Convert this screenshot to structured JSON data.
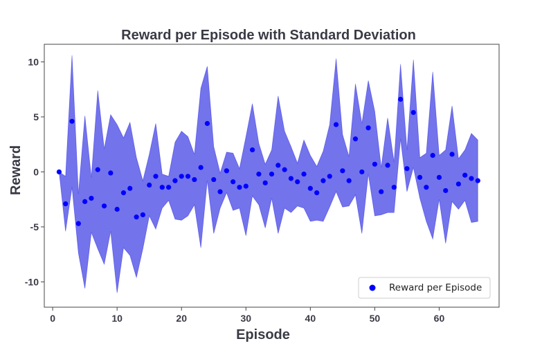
{
  "chart_data": {
    "type": "scatter",
    "title": "Reward per Episode with Standard Deviation",
    "xlabel": "Episode",
    "ylabel": "Reward",
    "xlim": [
      -1.3,
      69.3
    ],
    "ylim": [
      -12.3,
      11.6
    ],
    "xticks": [
      0,
      10,
      20,
      30,
      40,
      50,
      60
    ],
    "xtick_labels": [
      "0",
      "10",
      "20",
      "30",
      "40",
      "50",
      "60"
    ],
    "yticks": [
      10,
      5,
      0,
      -5,
      -10
    ],
    "ytick_labels": [
      "10",
      "5",
      "0",
      "-5",
      "-10"
    ],
    "grid": false,
    "legend": {
      "entries": [
        "Reward per Episode"
      ],
      "position": "lower-right"
    },
    "colors": {
      "points": "#0000ff",
      "band": "#0000dd",
      "band_opacity": 0.55,
      "text": "#3a3a46"
    },
    "x": [
      1,
      2,
      3,
      4,
      5,
      6,
      7,
      8,
      9,
      10,
      11,
      12,
      13,
      14,
      15,
      16,
      17,
      18,
      19,
      20,
      21,
      22,
      23,
      24,
      25,
      26,
      27,
      28,
      29,
      30,
      31,
      32,
      33,
      34,
      35,
      36,
      37,
      38,
      39,
      40,
      41,
      42,
      43,
      44,
      45,
      46,
      47,
      48,
      49,
      50,
      51,
      52,
      53,
      54,
      55,
      56,
      57,
      58,
      59,
      60,
      61,
      62,
      63,
      64,
      65,
      66
    ],
    "series": [
      {
        "name": "Reward per Episode",
        "values": [
          0.0,
          -2.9,
          4.6,
          -4.7,
          -2.7,
          -2.4,
          0.2,
          -3.1,
          -0.1,
          -3.4,
          -1.9,
          -1.5,
          -4.1,
          -3.9,
          -1.2,
          -0.4,
          -1.4,
          -1.4,
          -0.8,
          -0.4,
          -0.4,
          -0.7,
          0.4,
          4.4,
          -0.7,
          -1.8,
          0.1,
          -0.9,
          -1.4,
          -1.3,
          2.0,
          -0.2,
          -1.0,
          -0.2,
          0.6,
          0.2,
          -0.6,
          -0.9,
          -0.2,
          -1.5,
          -1.9,
          -0.8,
          -0.4,
          4.3,
          0.1,
          -0.8,
          3.0,
          0.0,
          4.0,
          0.7,
          -1.8,
          0.6,
          -1.4,
          6.6,
          0.3,
          5.4,
          -0.5,
          -1.4,
          1.5,
          -0.5,
          -1.7,
          1.6,
          -1.1,
          -0.3,
          -0.6,
          -0.8
        ],
        "upper": [
          0.0,
          -0.4,
          10.6,
          -2.0,
          5.1,
          -0.5,
          7.4,
          2.1,
          5.2,
          4.3,
          3.1,
          4.5,
          1.3,
          -0.8,
          1.6,
          4.4,
          -0.2,
          -0.4,
          2.7,
          3.7,
          3.2,
          1.6,
          7.6,
          9.6,
          2.3,
          -0.1,
          1.8,
          1.7,
          0.3,
          3.2,
          6.2,
          2.6,
          0.7,
          2.0,
          6.9,
          3.7,
          2.3,
          0.8,
          2.9,
          1.5,
          0.5,
          1.9,
          4.3,
          10.3,
          3.4,
          1.4,
          8.0,
          4.4,
          8.3,
          5.5,
          0.4,
          4.9,
          0.9,
          9.8,
          2.0,
          10.2,
          1.3,
          1.7,
          9.1,
          1.5,
          2.0,
          6.0,
          1.2,
          2.0,
          3.5,
          2.9
        ],
        "lower": [
          0.0,
          -5.4,
          -1.4,
          -7.4,
          -10.6,
          -5.5,
          -7.0,
          -8.4,
          -5.4,
          -11.0,
          -6.9,
          -7.6,
          -9.6,
          -7.0,
          -4.0,
          -5.2,
          -3.3,
          -2.6,
          -4.3,
          -4.4,
          -4.0,
          -3.0,
          -6.9,
          -0.8,
          -5.6,
          -3.3,
          -1.9,
          -3.5,
          -3.3,
          -5.8,
          -2.2,
          -3.0,
          -5.1,
          -2.4,
          -5.6,
          -3.3,
          -3.7,
          -3.1,
          -3.3,
          -4.5,
          -4.4,
          -4.5,
          -3.2,
          -1.8,
          -3.2,
          -3.1,
          -2.1,
          -5.6,
          -0.2,
          -4.0,
          -3.9,
          -3.7,
          -3.7,
          3.0,
          -1.8,
          0.4,
          -2.4,
          -4.5,
          -6.1,
          -2.5,
          -6.5,
          -2.7,
          -3.4,
          -2.6,
          -4.6,
          -4.5
        ]
      }
    ]
  }
}
